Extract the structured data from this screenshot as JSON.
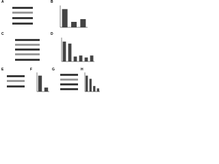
{
  "panels": [
    {
      "label": "A"
    },
    {
      "label": "B"
    },
    {
      "label": "C"
    },
    {
      "label": "D"
    },
    {
      "label": "E"
    },
    {
      "label": "F"
    },
    {
      "label": "G"
    },
    {
      "label": "H"
    }
  ],
  "chart_data": [
    {
      "type": "bar",
      "categories": [
        null,
        null,
        null
      ],
      "values": [
        1,
        0.3,
        0.45
      ],
      "ylim": [
        0,
        1.2
      ],
      "color": "#444444"
    },
    {
      "type": "bar",
      "categories": [
        null,
        null,
        null,
        null,
        null,
        null
      ],
      "values": [
        1,
        0.9,
        0.25,
        0.3,
        0.2,
        0.3
      ],
      "ylim": [
        0,
        1.2
      ],
      "color": "#444444"
    },
    {
      "type": "bar",
      "categories": [
        null,
        null
      ],
      "values": [
        1,
        0.25
      ],
      "ylim": [
        0,
        1.2
      ],
      "color": "#444444"
    },
    {
      "type": "bar",
      "categories": [
        null,
        null,
        null,
        null
      ],
      "values": [
        1,
        0.8,
        0.35,
        0.2
      ],
      "ylim": [
        0,
        1.2
      ],
      "color": "#444444"
    }
  ]
}
